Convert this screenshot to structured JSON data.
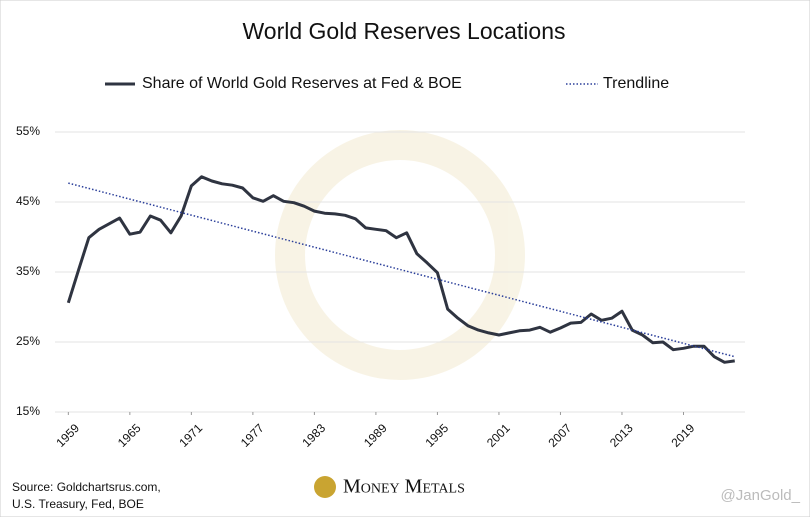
{
  "chart_data": {
    "type": "line",
    "title": "World Gold Reserves Locations",
    "x": [
      1959,
      1960,
      1961,
      1962,
      1963,
      1964,
      1965,
      1966,
      1967,
      1968,
      1969,
      1970,
      1971,
      1972,
      1973,
      1974,
      1975,
      1976,
      1977,
      1978,
      1979,
      1980,
      1981,
      1982,
      1983,
      1984,
      1985,
      1986,
      1987,
      1988,
      1989,
      1990,
      1991,
      1992,
      1993,
      1994,
      1995,
      1996,
      1997,
      1998,
      1999,
      2000,
      2001,
      2002,
      2003,
      2004,
      2005,
      2006,
      2007,
      2008,
      2009,
      2010,
      2011,
      2012,
      2013,
      2014,
      2015,
      2016,
      2017,
      2018,
      2019,
      2020,
      2021,
      2022,
      2023,
      2024
    ],
    "series": [
      {
        "name": "Share of World Gold Reserves at Fed & BOE",
        "color": "#2f3441",
        "style": "solid",
        "values": [
          30.6,
          35.3,
          39.9,
          41.1,
          41.9,
          42.7,
          40.4,
          40.7,
          43.0,
          42.4,
          40.6,
          43.0,
          47.3,
          48.6,
          48.0,
          47.6,
          47.4,
          47.0,
          45.6,
          45.1,
          45.9,
          45.1,
          44.9,
          44.4,
          43.7,
          43.4,
          43.3,
          43.1,
          42.6,
          41.3,
          41.1,
          40.9,
          39.9,
          40.6,
          37.6,
          36.3,
          34.9,
          29.7,
          28.4,
          27.3,
          26.7,
          26.3,
          26.0,
          26.3,
          26.6,
          26.7,
          27.1,
          26.4,
          27.0,
          27.7,
          27.8,
          29.0,
          28.1,
          28.4,
          29.4,
          26.7,
          26.0,
          24.9,
          25.0,
          23.9,
          24.1,
          24.4,
          24.4,
          22.9,
          22.1,
          22.3
        ]
      },
      {
        "name": "Trendline",
        "color": "#2b3f9a",
        "style": "dotted",
        "x": [
          1959,
          2024
        ],
        "values": [
          47.7,
          22.9
        ]
      }
    ],
    "xlim": [
      1957.7,
      2025
    ],
    "xticks": [
      1959,
      1965,
      1971,
      1977,
      1983,
      1989,
      1995,
      2001,
      2007,
      2013,
      2019
    ],
    "ylim": [
      15,
      55
    ],
    "yticks": [
      {
        "value": 15,
        "label": "15%"
      },
      {
        "value": 25,
        "label": "25%"
      },
      {
        "value": 35,
        "label": "35%"
      },
      {
        "value": 45,
        "label": "45%"
      },
      {
        "value": 55,
        "label": "55%"
      }
    ],
    "grid": true,
    "source": [
      "Source: Goldchartsrus.com,",
      "U.S. Treasury, Fed, BOE"
    ],
    "logo": "Money Metals",
    "handle": "@JanGold_"
  }
}
